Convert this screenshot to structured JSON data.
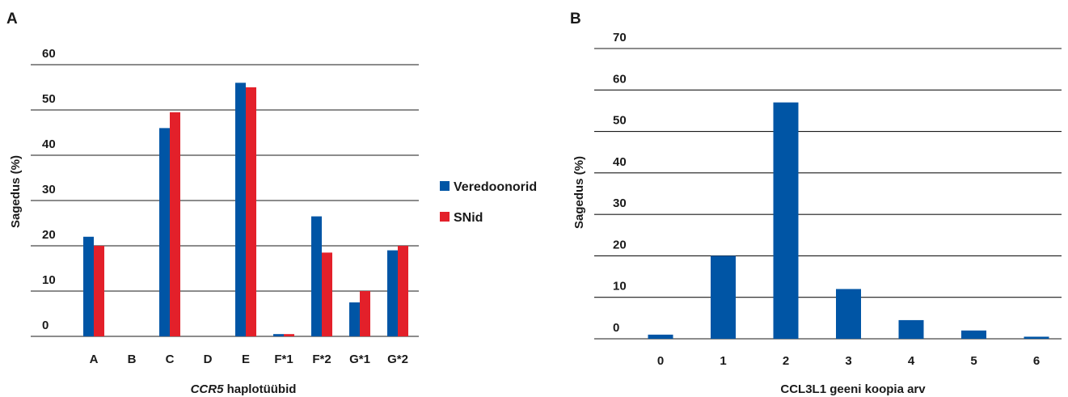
{
  "chart_data": [
    {
      "panel_label": "A",
      "type": "bar",
      "categories": [
        "A",
        "B",
        "C",
        "D",
        "E",
        "F*1",
        "F*2",
        "G*1",
        "G*2"
      ],
      "series": [
        {
          "name": "Veredoonorid",
          "color": "#0055a5",
          "values": [
            22,
            0,
            46,
            0,
            56,
            0.5,
            26.5,
            7.5,
            19
          ]
        },
        {
          "name": "SNid",
          "color": "#e3202a",
          "values": [
            20,
            0,
            49.5,
            0,
            55,
            0.5,
            18.5,
            10,
            20
          ]
        }
      ],
      "x_label_italic": "CCR5",
      "x_label_rest": " haplotüübid",
      "ylabel": "Sagedus (%)",
      "ylim": [
        0,
        60
      ],
      "yticks": [
        "0",
        "10",
        "20",
        "30",
        "40",
        "50",
        "60"
      ],
      "grid": true,
      "legend_position": "right"
    },
    {
      "panel_label": "B",
      "type": "bar",
      "categories": [
        "0",
        "1",
        "2",
        "3",
        "4",
        "5",
        "6"
      ],
      "series": [
        {
          "color": "#0055a5",
          "values": [
            1,
            20,
            57,
            12,
            4.5,
            2,
            0.5
          ]
        }
      ],
      "xlabel": "CCL3L1 geeni koopia arv",
      "ylabel": "Sagedus (%)",
      "ylim": [
        0,
        70
      ],
      "yticks": [
        "0",
        "10",
        "20",
        "30",
        "40",
        "50",
        "60",
        "70"
      ],
      "grid": true
    }
  ]
}
